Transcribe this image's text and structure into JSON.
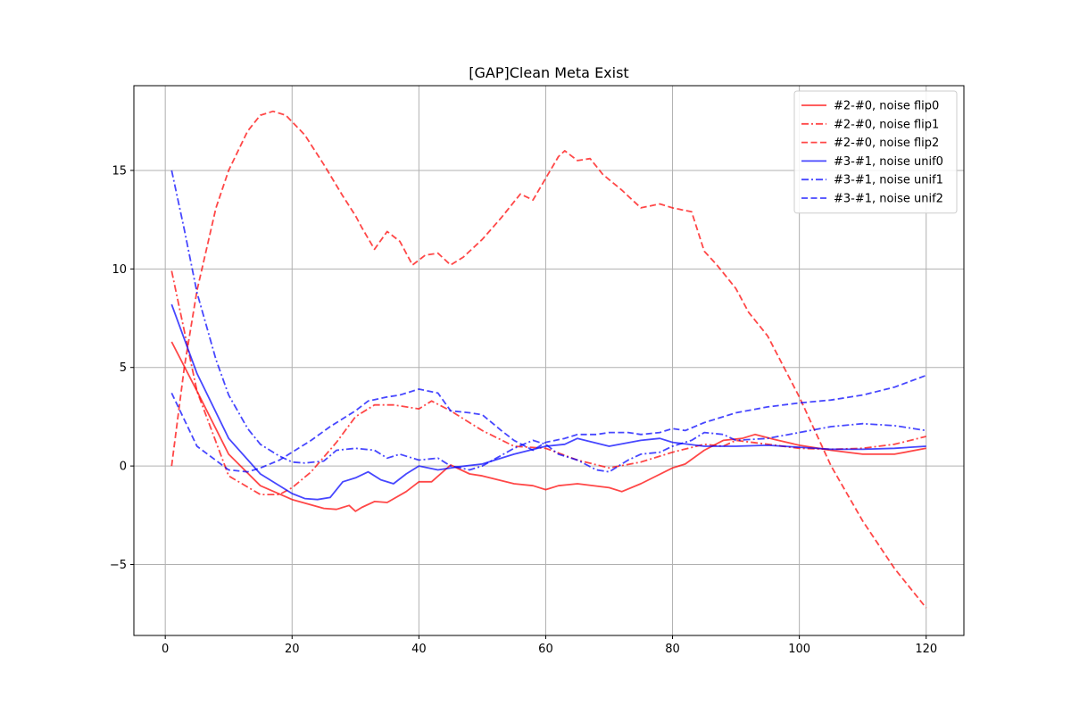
{
  "chart_data": {
    "type": "line",
    "title": "[GAP]Clean Meta Exist",
    "xlabel": "",
    "ylabel": "",
    "xlim": [
      -4.95,
      125.95
    ],
    "ylim": [
      -8.6,
      19.3
    ],
    "xticks": [
      0,
      20,
      40,
      60,
      80,
      100,
      120
    ],
    "yticks": [
      -5,
      0,
      5,
      10,
      15
    ],
    "grid": true,
    "legend_position": "top-right",
    "series": [
      {
        "name": "#2-#0, noise flip0",
        "color": "#ff0000",
        "dash": "solid",
        "x": [
          1,
          5,
          10,
          15,
          20,
          25,
          27,
          29,
          30,
          31,
          33,
          35,
          38,
          40,
          42,
          45,
          48,
          50,
          55,
          58,
          60,
          62,
          65,
          70,
          72,
          75,
          80,
          82,
          85,
          88,
          91,
          93,
          96,
          100,
          105,
          110,
          115,
          120
        ],
        "y": [
          6.3,
          3.8,
          0.6,
          -1.0,
          -1.7,
          -2.15,
          -2.2,
          -2.0,
          -2.3,
          -2.1,
          -1.8,
          -1.85,
          -1.3,
          -0.8,
          -0.8,
          0.05,
          -0.4,
          -0.5,
          -0.9,
          -1.0,
          -1.2,
          -1.0,
          -0.9,
          -1.1,
          -1.3,
          -0.9,
          -0.1,
          0.1,
          0.8,
          1.3,
          1.4,
          1.6,
          1.35,
          1.05,
          0.8,
          0.6,
          0.6,
          0.9
        ]
      },
      {
        "name": "#2-#0, noise flip1",
        "color": "#ff0000",
        "dash": "dashdot",
        "x": [
          1,
          5,
          10,
          15,
          18,
          20,
          23,
          27,
          30,
          33,
          36,
          40,
          42,
          45,
          50,
          55,
          60,
          65,
          70,
          75,
          80,
          85,
          88,
          90,
          95,
          100,
          105,
          110,
          115,
          120
        ],
        "y": [
          9.9,
          3.8,
          -0.5,
          -1.45,
          -1.45,
          -1.1,
          -0.3,
          1.2,
          2.5,
          3.1,
          3.1,
          2.9,
          3.3,
          2.8,
          1.8,
          1.0,
          0.9,
          0.3,
          -0.1,
          0.2,
          0.7,
          1.1,
          1.0,
          1.3,
          1.1,
          0.9,
          0.85,
          0.9,
          1.1,
          1.5
        ]
      },
      {
        "name": "#2-#0, noise flip2",
        "color": "#ff0000",
        "dash": "dashed",
        "x": [
          1,
          3,
          5,
          8,
          10,
          13,
          15,
          17,
          19,
          22,
          25,
          28,
          30,
          31,
          33,
          35,
          37,
          39,
          41,
          43,
          45,
          47,
          50,
          53,
          56,
          58,
          60,
          62,
          63,
          65,
          67,
          69,
          72,
          75,
          78,
          80,
          83,
          85,
          87,
          90,
          92,
          95,
          100,
          105,
          110,
          115,
          120
        ],
        "y": [
          0.0,
          5.0,
          8.9,
          13.1,
          15.0,
          17.0,
          17.8,
          18.0,
          17.8,
          16.8,
          15.3,
          13.7,
          12.7,
          12.1,
          11.0,
          11.9,
          11.4,
          10.2,
          10.7,
          10.8,
          10.2,
          10.6,
          11.5,
          12.6,
          13.8,
          13.5,
          14.6,
          15.7,
          16.0,
          15.5,
          15.6,
          14.8,
          14.0,
          13.1,
          13.3,
          13.1,
          12.9,
          10.9,
          10.2,
          9.0,
          7.8,
          6.6,
          3.5,
          0.0,
          -2.8,
          -5.2,
          -7.2
        ]
      },
      {
        "name": "#3-#1, noise unif0",
        "color": "#0000ff",
        "dash": "solid",
        "x": [
          1,
          5,
          10,
          15,
          20,
          22,
          24,
          26,
          28,
          30,
          32,
          34,
          36,
          38,
          40,
          43,
          46,
          50,
          55,
          60,
          63,
          65,
          70,
          75,
          78,
          80,
          85,
          90,
          95,
          100,
          105,
          110,
          115,
          120
        ],
        "y": [
          8.2,
          4.7,
          1.4,
          -0.4,
          -1.4,
          -1.65,
          -1.7,
          -1.6,
          -0.8,
          -0.6,
          -0.3,
          -0.7,
          -0.9,
          -0.4,
          0.0,
          -0.2,
          -0.05,
          0.1,
          0.6,
          1.0,
          1.1,
          1.4,
          1.0,
          1.3,
          1.4,
          1.2,
          1.0,
          1.0,
          1.05,
          0.95,
          0.85,
          0.85,
          0.9,
          1.0
        ]
      },
      {
        "name": "#3-#1, noise unif1",
        "color": "#0000ff",
        "dash": "dashdot",
        "x": [
          1,
          3,
          5,
          8,
          10,
          13,
          15,
          18,
          20,
          22,
          25,
          27,
          30,
          33,
          35,
          37,
          40,
          43,
          45,
          48,
          50,
          55,
          58,
          60,
          62,
          65,
          68,
          70,
          73,
          75,
          78,
          80,
          83,
          85,
          88,
          90,
          95,
          100,
          105,
          110,
          115,
          120
        ],
        "y": [
          15.0,
          12.0,
          8.8,
          5.4,
          3.6,
          1.9,
          1.1,
          0.5,
          0.2,
          0.15,
          0.25,
          0.8,
          0.9,
          0.8,
          0.4,
          0.6,
          0.3,
          0.4,
          0.0,
          -0.2,
          0.0,
          0.9,
          1.3,
          1.1,
          0.6,
          0.3,
          -0.2,
          -0.3,
          0.3,
          0.6,
          0.7,
          1.0,
          1.3,
          1.7,
          1.6,
          1.3,
          1.4,
          1.7,
          2.0,
          2.15,
          2.05,
          1.8
        ]
      },
      {
        "name": "#3-#1, noise unif2",
        "color": "#0000ff",
        "dash": "dashed",
        "x": [
          1,
          5,
          10,
          13,
          15,
          18,
          20,
          23,
          26,
          28,
          30,
          32,
          35,
          37,
          40,
          43,
          45,
          48,
          50,
          53,
          55,
          58,
          60,
          63,
          65,
          68,
          70,
          73,
          75,
          78,
          80,
          82,
          85,
          87,
          90,
          95,
          100,
          105,
          110,
          115,
          120
        ],
        "y": [
          3.7,
          1.0,
          -0.2,
          -0.3,
          -0.1,
          0.3,
          0.7,
          1.3,
          2.0,
          2.4,
          2.8,
          3.3,
          3.5,
          3.6,
          3.9,
          3.7,
          2.8,
          2.7,
          2.6,
          1.8,
          1.3,
          0.8,
          1.2,
          1.4,
          1.6,
          1.6,
          1.7,
          1.7,
          1.6,
          1.7,
          1.9,
          1.8,
          2.2,
          2.4,
          2.7,
          3.0,
          3.2,
          3.35,
          3.6,
          4.0,
          4.6
        ]
      }
    ]
  }
}
